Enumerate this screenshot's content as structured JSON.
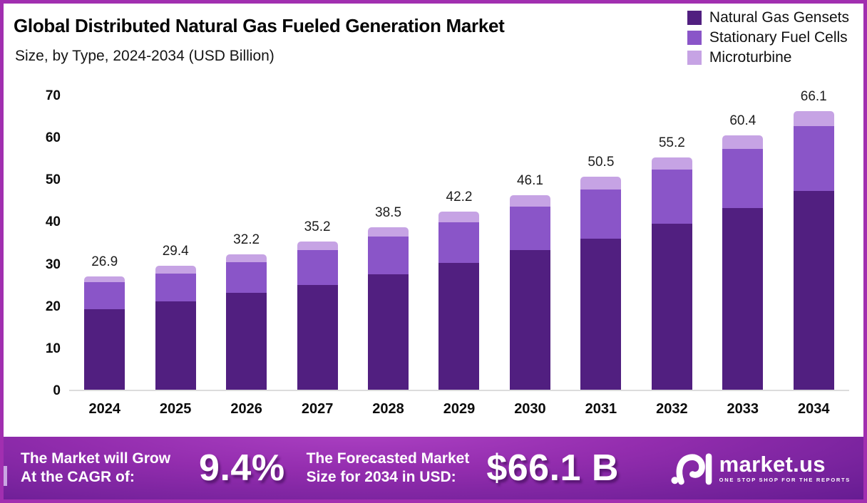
{
  "header": {
    "title": "Global Distributed Natural Gas Fueled Generation Market",
    "subtitle": "Size, by Type, 2024-2034 (USD Billion)"
  },
  "legend": {
    "position": "top-right",
    "items": [
      {
        "label": "Natural Gas Gensets",
        "color": "#511F80"
      },
      {
        "label": "Stationary Fuel Cells",
        "color": "#8A55C8"
      },
      {
        "label": "Microturbine",
        "color": "#C6A3E4"
      }
    ]
  },
  "chart_data": {
    "type": "bar",
    "stacked": true,
    "title": "Global Distributed Natural Gas Fueled Generation Market Size, by Type, 2024-2034 (USD Billion)",
    "xlabel": "",
    "ylabel": "USD Billion",
    "ylim": [
      0,
      70
    ],
    "yticks": [
      0,
      10,
      20,
      30,
      40,
      50,
      60,
      70
    ],
    "grid": false,
    "legend_position": "top-right",
    "categories": [
      "2024",
      "2025",
      "2026",
      "2027",
      "2028",
      "2029",
      "2030",
      "2031",
      "2032",
      "2033",
      "2034"
    ],
    "series": [
      {
        "name": "Natural Gas Gensets",
        "color": "#511F80",
        "values": [
          19.1,
          21.0,
          23.0,
          24.9,
          27.4,
          30.1,
          33.1,
          35.9,
          39.4,
          43.2,
          47.2
        ]
      },
      {
        "name": "Stationary Fuel Cells",
        "color": "#8A55C8",
        "values": [
          6.4,
          6.6,
          7.2,
          8.2,
          9.0,
          9.7,
          10.3,
          11.6,
          12.8,
          13.9,
          15.4
        ]
      },
      {
        "name": "Microturbine",
        "color": "#C6A3E4",
        "values": [
          1.4,
          1.8,
          2.0,
          2.1,
          2.1,
          2.4,
          2.7,
          3.0,
          3.0,
          3.3,
          3.5
        ]
      }
    ],
    "totals": [
      "26.9",
      "29.4",
      "32.2",
      "35.2",
      "38.5",
      "42.2",
      "46.1",
      "50.5",
      "55.2",
      "60.4",
      "66.1"
    ]
  },
  "footer": {
    "cagr_label_line1": "The Market will Grow",
    "cagr_label_line2": "At the CAGR of:",
    "cagr_value": "9.4%",
    "forecast_label_line1": "The Forecasted Market",
    "forecast_label_line2": "Size for 2034 in USD:",
    "forecast_value": "$66.1 B",
    "brand_name": "market.us",
    "brand_tagline": "ONE STOP SHOP FOR THE REPORTS"
  },
  "colors": {
    "frame_border": "#A12FB0",
    "baseline": "#DCDCDC",
    "footer_gradient_light": "#AC41C3",
    "footer_gradient_dark": "#661C92",
    "text_dark": "#0B0B0B",
    "text_white": "#FFFFFF"
  }
}
